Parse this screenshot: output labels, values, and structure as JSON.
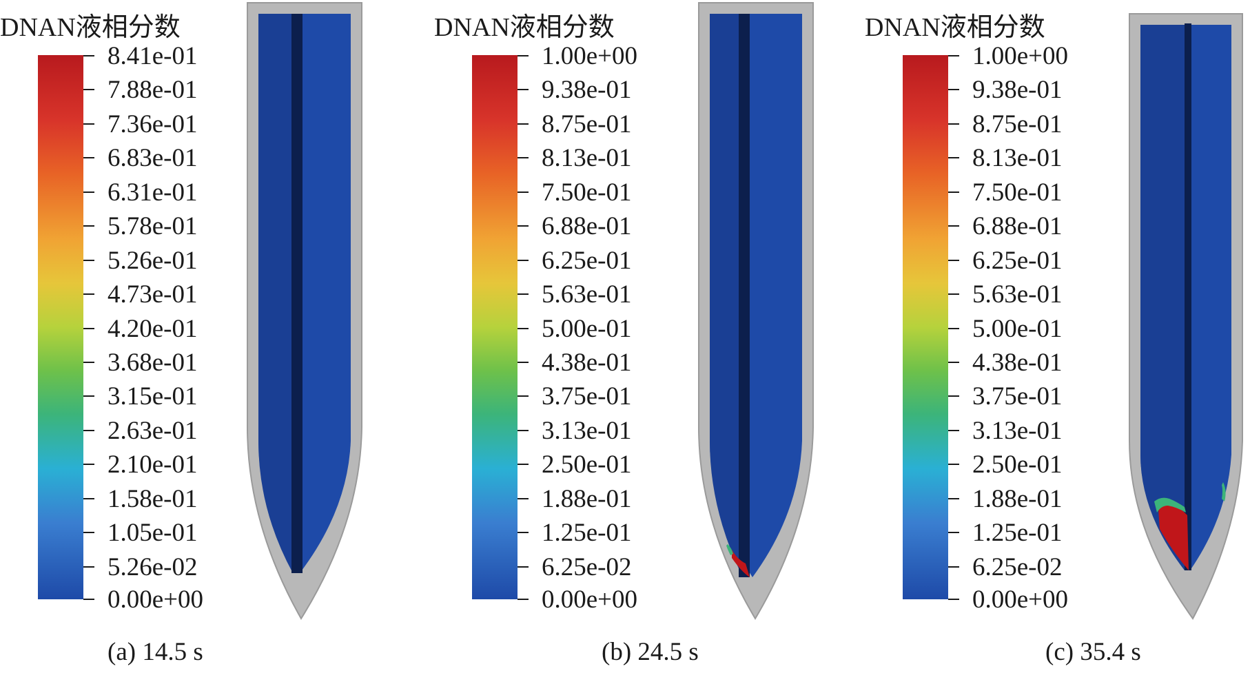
{
  "panels": [
    {
      "legend_title": "DNAN液相分数",
      "ticks": [
        "8.41e-01",
        "7.88e-01",
        "7.36e-01",
        "6.83e-01",
        "6.31e-01",
        "5.78e-01",
        "5.26e-01",
        "4.73e-01",
        "4.20e-01",
        "3.68e-01",
        "3.15e-01",
        "2.63e-01",
        "2.10e-01",
        "1.58e-01",
        "1.05e-01",
        "5.26e-02",
        "0.00e+00"
      ],
      "caption": "(a) 14.5 s",
      "melt_level": "none"
    },
    {
      "legend_title": "DNAN液相分数",
      "ticks": [
        "1.00e+00",
        "9.38e-01",
        "8.75e-01",
        "8.13e-01",
        "7.50e-01",
        "6.88e-01",
        "6.25e-01",
        "5.63e-01",
        "5.00e-01",
        "4.38e-01",
        "3.75e-01",
        "3.13e-01",
        "2.50e-01",
        "1.88e-01",
        "1.25e-01",
        "6.25e-02",
        "0.00e+00"
      ],
      "caption": "(b) 24.5 s",
      "melt_level": "small"
    },
    {
      "legend_title": "DNAN液相分数",
      "ticks": [
        "1.00e+00",
        "9.38e-01",
        "8.75e-01",
        "8.13e-01",
        "7.50e-01",
        "6.88e-01",
        "6.25e-01",
        "5.63e-01",
        "5.00e-01",
        "4.38e-01",
        "3.75e-01",
        "3.13e-01",
        "2.50e-01",
        "1.88e-01",
        "1.25e-01",
        "6.25e-02",
        "0.00e+00"
      ],
      "caption": "(c) 35.4 s",
      "melt_level": "large"
    }
  ],
  "colors": {
    "shell": "#b8b8b8",
    "fill": "#1e4aa8",
    "fill_dark": "#14307a",
    "core": "#0c1f4d",
    "melt": "#c0161a"
  }
}
